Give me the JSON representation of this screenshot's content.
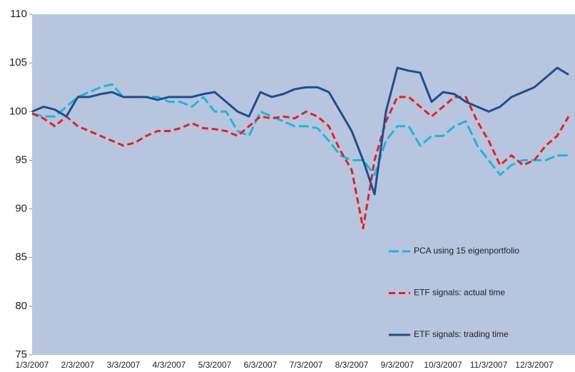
{
  "chart_data": {
    "type": "line",
    "categories": [
      "1/3/2007",
      null,
      null,
      null,
      "2/3/2007",
      null,
      null,
      null,
      "3/3/2007",
      null,
      null,
      null,
      "4/3/2007",
      null,
      null,
      null,
      "5/3/2007",
      null,
      null,
      null,
      "6/3/2007",
      null,
      null,
      null,
      "7/3/2007",
      null,
      null,
      null,
      "8/3/2007",
      null,
      null,
      null,
      "9/3/2007",
      null,
      null,
      null,
      "10/3/2007",
      null,
      null,
      null,
      "11/3/2007",
      null,
      null,
      null,
      "12/3/2007",
      null,
      null,
      null
    ],
    "series": [
      {
        "name": "PCA using 15 eigenportfolio",
        "color": "#1fb6d8",
        "line_style": "dashed-long",
        "values": [
          99.8,
          99.5,
          99.5,
          100.5,
          101.5,
          102,
          102.5,
          102.8,
          101.5,
          101.5,
          101.5,
          101.5,
          101,
          101,
          100.5,
          101.5,
          100,
          100,
          98,
          97.5,
          100,
          99.5,
          99,
          98.5,
          98.5,
          98.3,
          97,
          95.5,
          95,
          95,
          93.5,
          97,
          98.5,
          98.5,
          96.5,
          97.5,
          97.5,
          98.5,
          99,
          96.5,
          95,
          93.5,
          94.5,
          95,
          95,
          95,
          95.5,
          95.5
        ]
      },
      {
        "name": "ETF signals: actual time",
        "color": "#e0231f",
        "line_style": "dashed",
        "values": [
          99.8,
          99.3,
          98.5,
          99.5,
          98.5,
          98,
          97.5,
          97,
          96.5,
          96.8,
          97.5,
          98,
          98,
          98.3,
          98.8,
          98.3,
          98.2,
          98,
          97.5,
          98.5,
          99.5,
          99.3,
          99.5,
          99.3,
          100,
          99.5,
          98.5,
          96,
          94,
          88,
          95,
          99,
          101.5,
          101.5,
          100.5,
          99.5,
          100.5,
          101.5,
          101.5,
          99,
          97,
          94.5,
          95.5,
          94.5,
          95,
          96.5,
          97.5,
          99.5
        ]
      },
      {
        "name": "ETF signals: trading time",
        "color": "#1f4e8c",
        "line_style": "solid",
        "values": [
          100,
          100.5,
          100.2,
          99.5,
          101.5,
          101.5,
          101.8,
          102,
          101.5,
          101.5,
          101.5,
          101.2,
          101.5,
          101.5,
          101.5,
          101.8,
          102,
          101,
          100,
          99.5,
          102,
          101.5,
          101.8,
          102.3,
          102.5,
          102.5,
          102,
          100,
          98,
          95,
          91.5,
          100,
          104.5,
          104.2,
          104,
          101,
          102,
          101.8,
          101,
          100.5,
          100,
          100.5,
          101.5,
          102,
          102.5,
          103.5,
          104.5,
          103.8
        ]
      }
    ],
    "ylim": [
      75,
      110
    ],
    "yticks": [
      75,
      80,
      85,
      90,
      95,
      100,
      105,
      110
    ],
    "grid": false,
    "legend_position": "lower right"
  }
}
